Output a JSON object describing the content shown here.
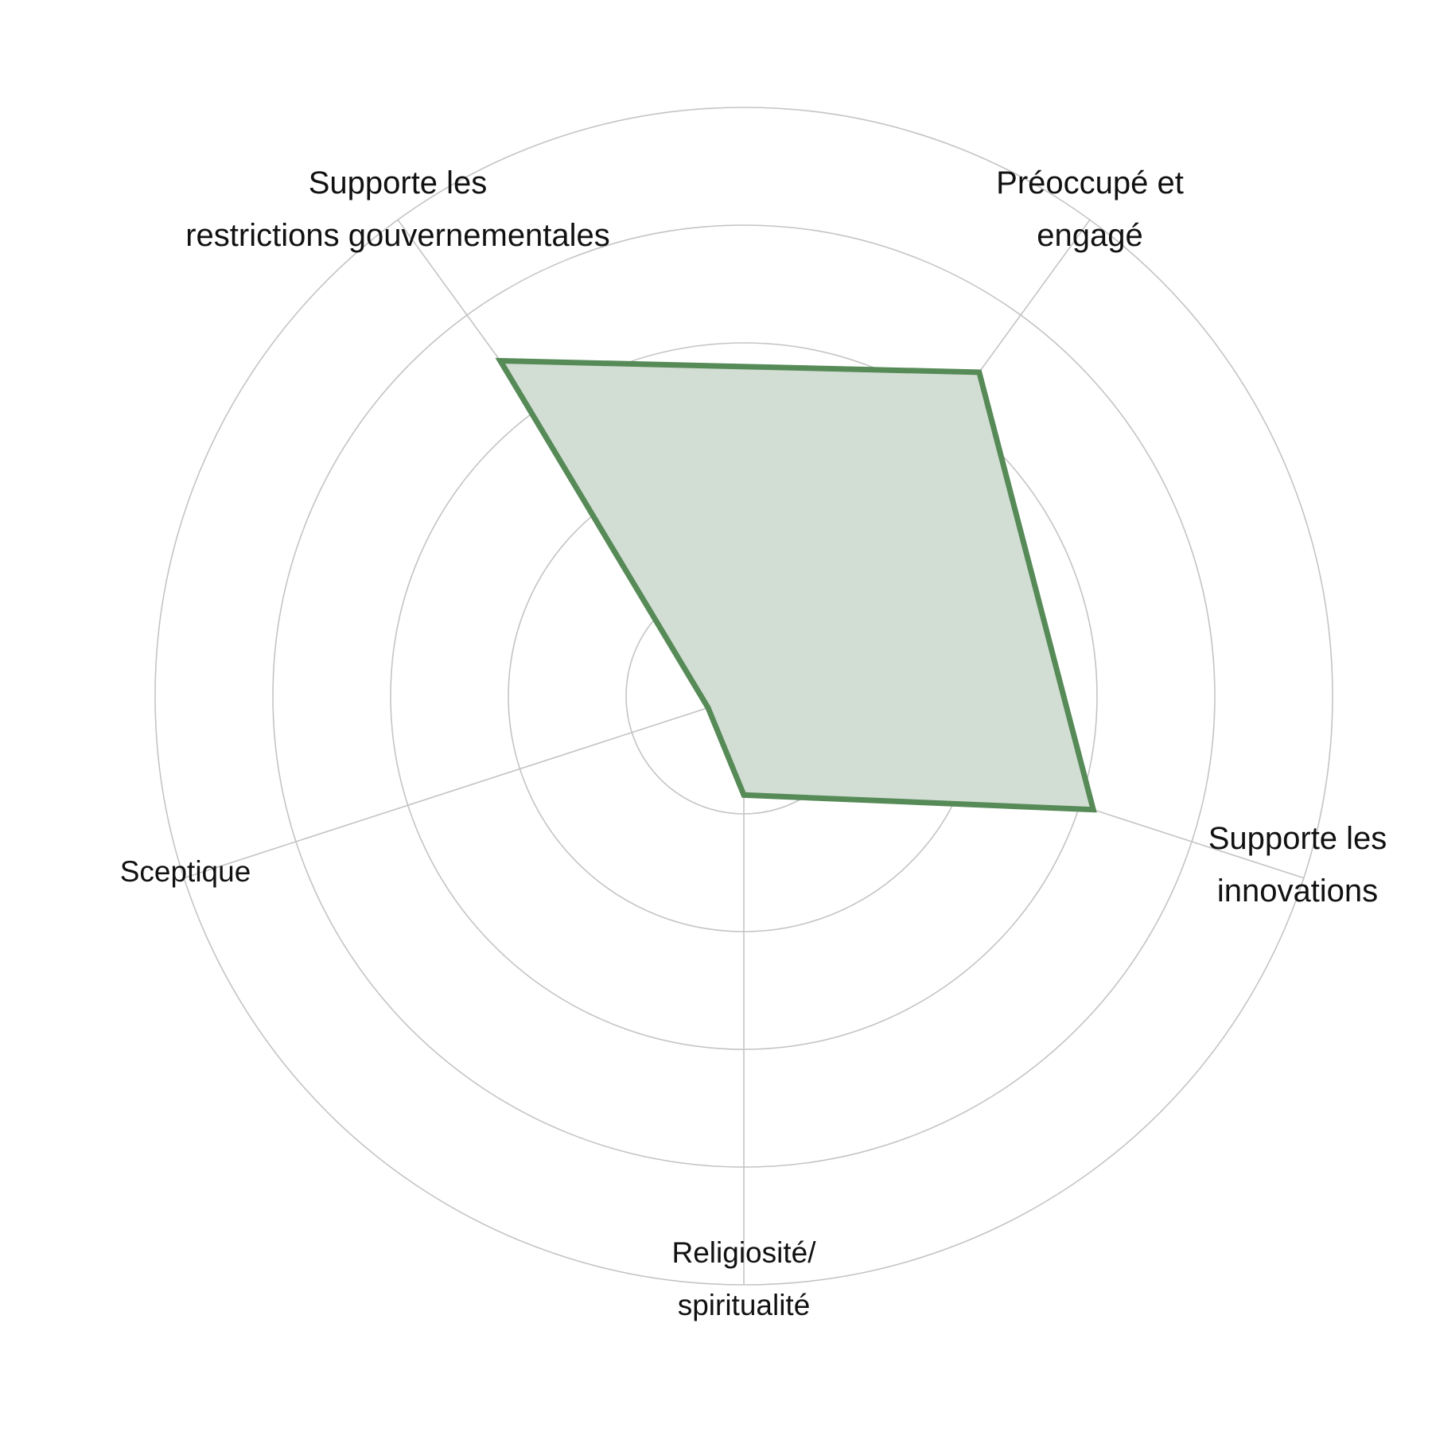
{
  "chart_data": {
    "type": "radar",
    "title": "",
    "axes": [
      {
        "label_lines": [
          "Préoccupé et",
          "engagé"
        ],
        "value": 0.85
      },
      {
        "label_lines": [
          "Supporte les",
          "innovations"
        ],
        "value": 0.78
      },
      {
        "label_lines": [
          "Religiosité/",
          "spiritualité"
        ],
        "value": 0.21
      },
      {
        "label_lines": [
          "Sceptique"
        ],
        "value": 0.08
      },
      {
        "label_lines": [
          "Supporte les",
          "restrictions gouvernementales"
        ],
        "value": 0.88
      }
    ],
    "rings": [
      0.25,
      0.5,
      0.75,
      1.0,
      1.25
    ],
    "range": [
      0,
      1.25
    ],
    "grid": true,
    "series": [
      {
        "values": [
          0.85,
          0.78,
          0.21,
          0.08,
          0.88
        ],
        "color": "#568a57",
        "fill": "#d2ded3"
      }
    ]
  }
}
